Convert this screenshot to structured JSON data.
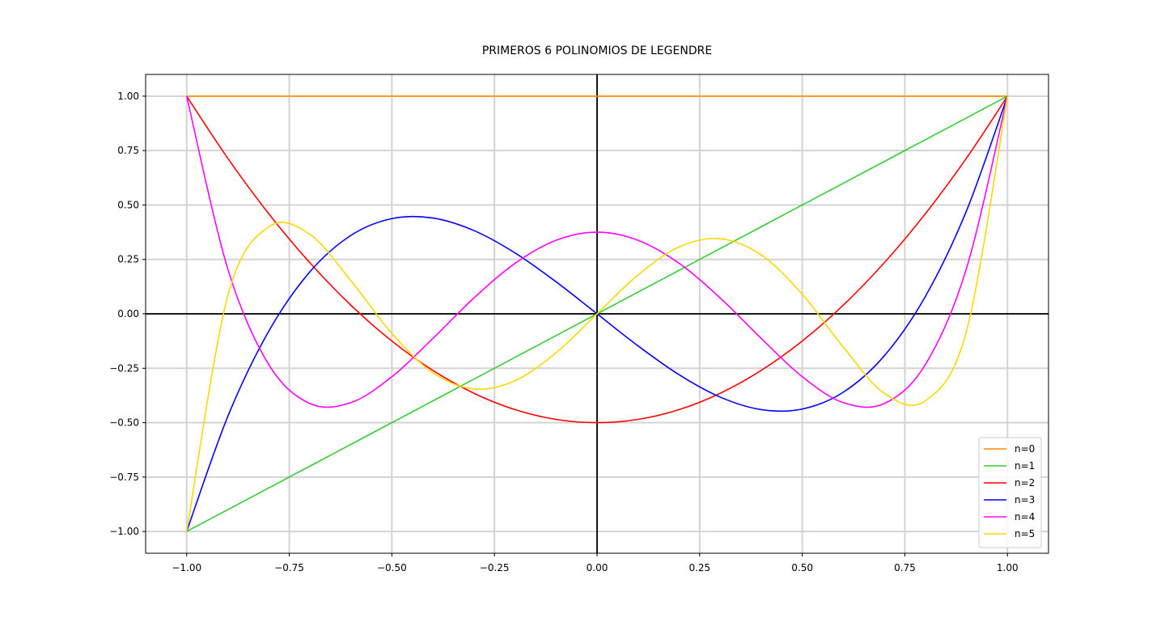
{
  "chart_data": {
    "type": "line",
    "title": "PRIMEROS 6 POLINOMIOS DE LEGENDRE",
    "xlabel": "",
    "ylabel": "",
    "xlim": [
      -1.1,
      1.1
    ],
    "ylim": [
      -1.1,
      1.1
    ],
    "xticks": [
      -1.0,
      -0.75,
      -0.5,
      -0.25,
      0.0,
      0.25,
      0.5,
      0.75,
      1.0
    ],
    "yticks": [
      -1.0,
      -0.75,
      -0.5,
      -0.25,
      0.0,
      0.25,
      0.5,
      0.75,
      1.0
    ],
    "xtick_labels": [
      "−1.00",
      "−0.75",
      "−0.50",
      "−0.25",
      "0.00",
      "0.25",
      "0.50",
      "0.75",
      "1.00"
    ],
    "ytick_labels": [
      "−1.00",
      "−0.75",
      "−0.50",
      "−0.25",
      "0.00",
      "0.25",
      "0.50",
      "0.75",
      "1.00"
    ],
    "grid": true,
    "axes_lines": {
      "x0": true,
      "y0": true,
      "color": "#000000"
    },
    "legend_position": "lower-right",
    "x": [
      -1.0,
      -0.9,
      -0.8,
      -0.7,
      -0.6,
      -0.5,
      -0.4,
      -0.3,
      -0.2,
      -0.1,
      0.0,
      0.1,
      0.2,
      0.3,
      0.4,
      0.5,
      0.6,
      0.7,
      0.8,
      0.9,
      1.0
    ],
    "series": [
      {
        "name": "n=0",
        "color": "#ff8c00",
        "values": [
          1,
          1,
          1,
          1,
          1,
          1,
          1,
          1,
          1,
          1,
          1,
          1,
          1,
          1,
          1,
          1,
          1,
          1,
          1,
          1,
          1
        ]
      },
      {
        "name": "n=1",
        "color": "#32cd32",
        "values": [
          -1.0,
          -0.9,
          -0.8,
          -0.7,
          -0.6,
          -0.5,
          -0.4,
          -0.3,
          -0.2,
          -0.1,
          0.0,
          0.1,
          0.2,
          0.3,
          0.4,
          0.5,
          0.6,
          0.7,
          0.8,
          0.9,
          1.0
        ]
      },
      {
        "name": "n=2",
        "color": "#ff0000",
        "values": [
          1.0,
          0.715,
          0.46,
          0.235,
          0.04,
          -0.125,
          -0.26,
          -0.365,
          -0.44,
          -0.485,
          -0.5,
          -0.485,
          -0.44,
          -0.365,
          -0.26,
          -0.125,
          0.04,
          0.235,
          0.46,
          0.715,
          1.0
        ]
      },
      {
        "name": "n=3",
        "color": "#0000ff",
        "values": [
          -1.0,
          -0.4725,
          -0.08,
          0.1925,
          0.36,
          0.4375,
          0.44,
          0.3825,
          0.28,
          0.1475,
          0.0,
          -0.1475,
          -0.28,
          -0.3825,
          -0.44,
          -0.4375,
          -0.36,
          -0.1925,
          0.08,
          0.4725,
          1.0
        ]
      },
      {
        "name": "n=4",
        "color": "#ff00ff",
        "values": [
          1.0,
          0.2079,
          -0.233,
          -0.4121,
          -0.408,
          -0.2891,
          -0.113,
          0.0729,
          0.232,
          0.3379,
          0.375,
          0.3379,
          0.232,
          0.0729,
          -0.113,
          -0.2891,
          -0.408,
          -0.4121,
          -0.233,
          0.2079,
          1.0
        ]
      },
      {
        "name": "n=5",
        "color": "#ffd700",
        "values": [
          -1.0,
          0.0812,
          0.3995,
          0.3652,
          0.1526,
          -0.0898,
          -0.2706,
          -0.3453,
          -0.3075,
          -0.1789,
          0.0,
          0.1789,
          0.3075,
          0.3453,
          0.2706,
          0.0898,
          -0.1526,
          -0.3652,
          -0.3995,
          -0.0812,
          1.0
        ]
      }
    ]
  }
}
